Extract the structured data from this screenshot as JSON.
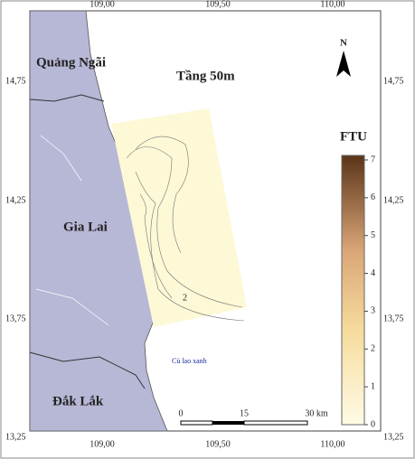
{
  "title": "Tầng 50m",
  "north": "N",
  "lon_ticks": [
    "109,00",
    "109,50",
    "110,00"
  ],
  "lat_ticks": [
    "14,75",
    "14,25",
    "13,75",
    "13,25"
  ],
  "places": [
    "Quảng Ngãi",
    "Gia Lai",
    "Đắk Lắk",
    "Cù lao xanh"
  ],
  "contour_label": "2",
  "legend": {
    "title": "FTU",
    "ticks": [
      0,
      1,
      2,
      3,
      4,
      5,
      6,
      7
    ]
  },
  "scale_bar": [
    "0",
    "15",
    "30 km"
  ]
}
